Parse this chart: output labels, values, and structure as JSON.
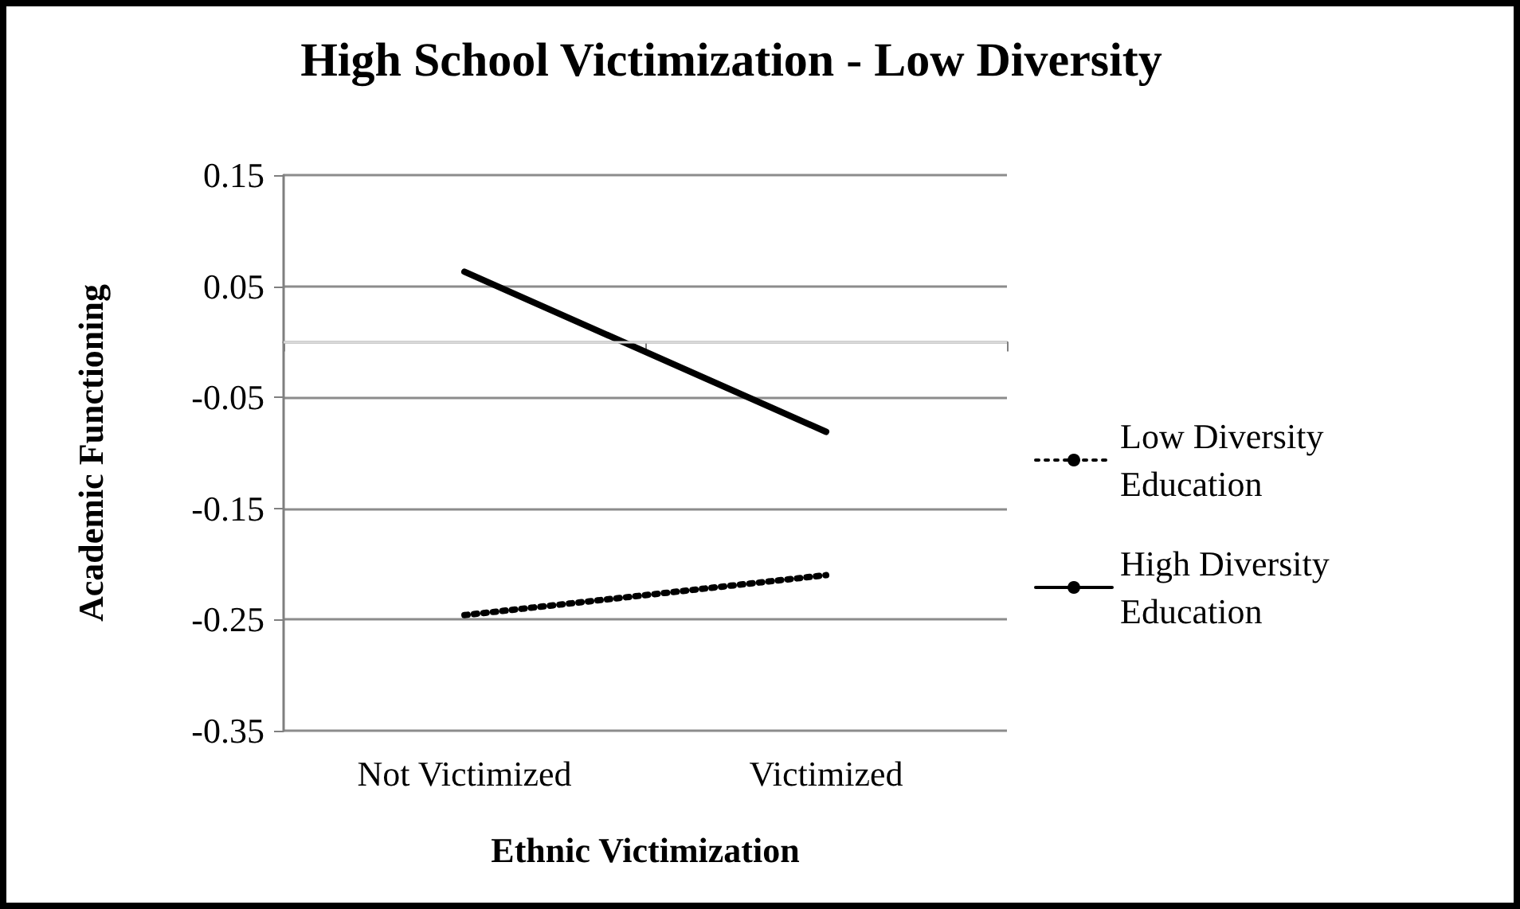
{
  "chart_data": {
    "type": "line",
    "title": "High School Victimization - Low Diversity",
    "xlabel": "Ethnic Victimization",
    "ylabel": "Academic Functioning",
    "categories": [
      "Not Victimized",
      "Victimized"
    ],
    "series": [
      {
        "name": "Low Diversity Education",
        "color": "#000000",
        "values": [
          -0.246,
          -0.21
        ],
        "line_style": "dotted"
      },
      {
        "name": "High Diversity Education",
        "color": "#000000",
        "values": [
          0.063,
          -0.081
        ],
        "line_style": "solid"
      }
    ],
    "ylim": [
      -0.35,
      0.15
    ],
    "yticks": [
      0.15,
      0.05,
      -0.05,
      -0.15,
      -0.25,
      -0.35
    ],
    "ref_lines": [
      {
        "axis": "y",
        "value": 0,
        "color": "#d9d9d9"
      }
    ],
    "grid": "y",
    "legend": "right",
    "marker": "none"
  }
}
